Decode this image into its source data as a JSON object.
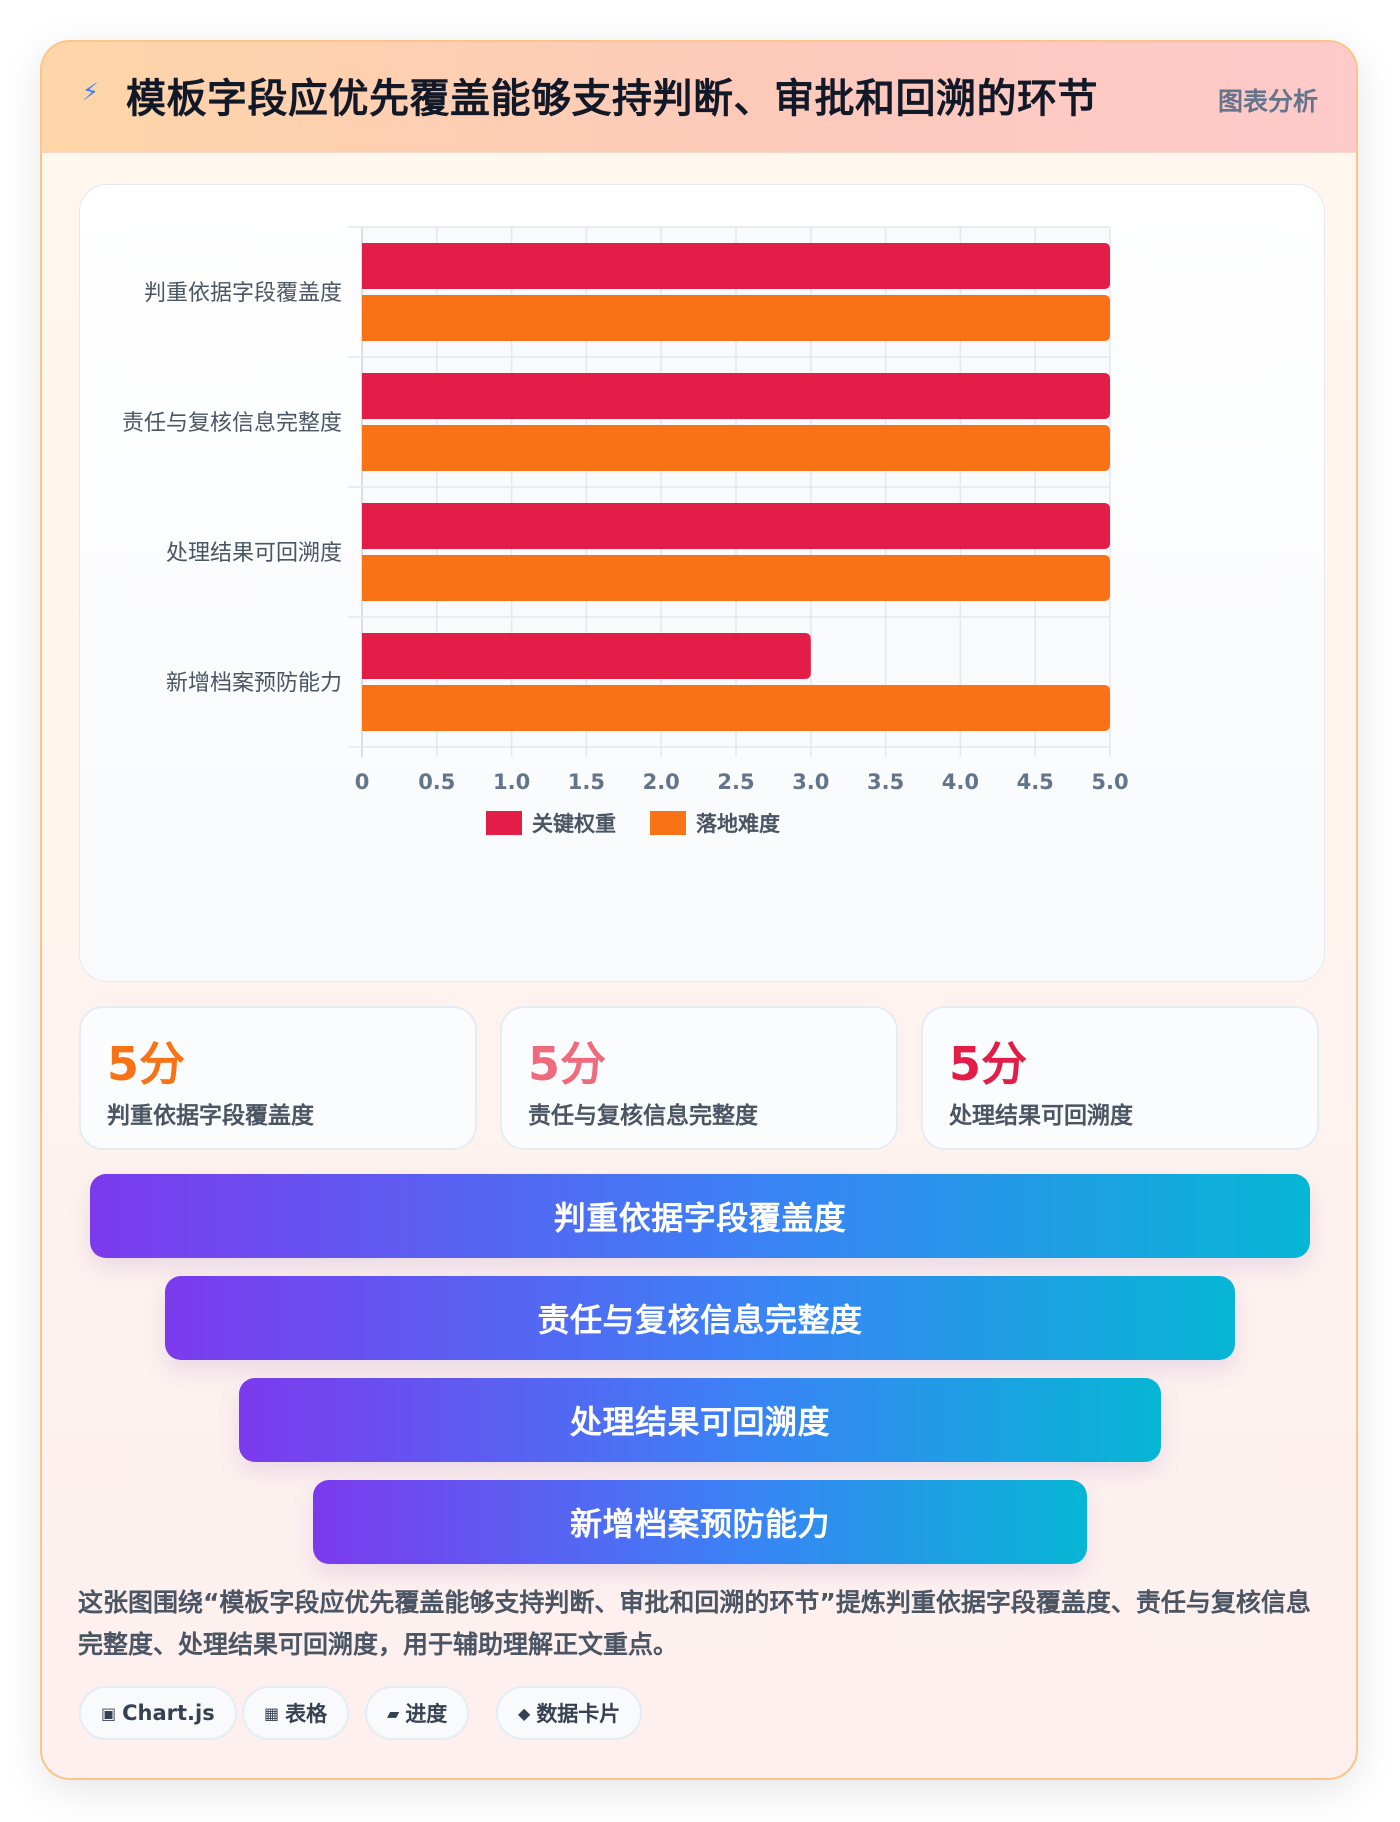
{
  "header": {
    "icon": "lightning-icon",
    "title": "模板字段应优先覆盖能够支持判断、审批和回溯的环节",
    "tag": "图表分析"
  },
  "chart_data": {
    "type": "bar",
    "orientation": "horizontal",
    "categories": [
      "判重依据字段覆盖度",
      "责任与复核信息完整度",
      "处理结果可回溯度",
      "新增档案预防能力"
    ],
    "series": [
      {
        "name": "关键权重",
        "values": [
          5,
          5,
          5,
          3
        ],
        "color": "#e11d48"
      },
      {
        "name": "落地难度",
        "values": [
          5,
          5,
          5,
          5
        ],
        "color": "#f97316"
      }
    ],
    "xlim": [
      0,
      5
    ],
    "ticks": [
      "0",
      "0.5",
      "1.0",
      "1.5",
      "2.0",
      "2.5",
      "3.0",
      "3.5",
      "4.0",
      "4.5",
      "5.0"
    ],
    "grid": true,
    "legend": "bottom"
  },
  "stats": [
    {
      "value": "5分",
      "label": "判重依据字段覆盖度",
      "color": "#f97316"
    },
    {
      "value": "5分",
      "label": "责任与复核信息完整度",
      "color": "#f06a7e"
    },
    {
      "value": "5分",
      "label": "处理结果可回溯度",
      "color": "#e11d48"
    }
  ],
  "funnel": [
    "判重依据字段覆盖度",
    "责任与复核信息完整度",
    "处理结果可回溯度",
    "新增档案预防能力"
  ],
  "description": "这张图围绕“模板字段应优先覆盖能够支持判断、审批和回溯的环节”提炼判重依据字段覆盖度、责任与复核信息完整度、处理结果可回溯度，用于辅助理解正文重点。",
  "chips": [
    {
      "icon": "▣",
      "label": "Chart.js"
    },
    {
      "icon": "▦",
      "label": "表格"
    },
    {
      "icon": "▰",
      "label": "进度"
    },
    {
      "icon": "◆",
      "label": "数据卡片"
    }
  ]
}
